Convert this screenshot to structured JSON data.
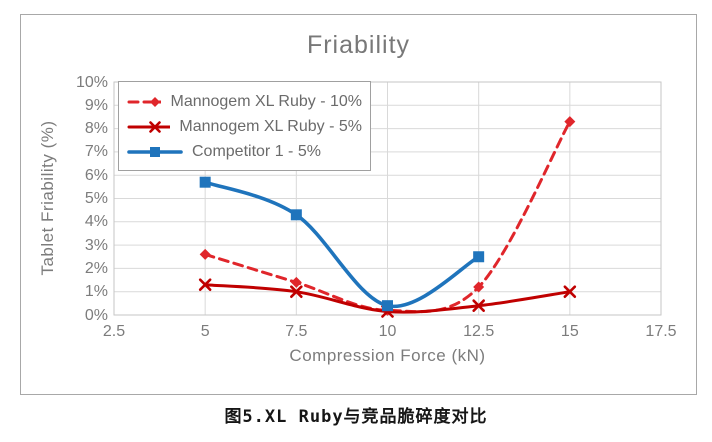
{
  "page": {
    "caption": "图5.XL Ruby与竞品脆碎度对比"
  },
  "chart_data": {
    "type": "line",
    "title": "Friability",
    "xlabel": "Compression Force (kN)",
    "ylabel": "Tablet Friability (%)",
    "xlim": [
      2.5,
      17.5
    ],
    "ylim": [
      0,
      10
    ],
    "grid": true,
    "legend_position": "top-left",
    "x_ticks": [
      2.5,
      5,
      7.5,
      10,
      12.5,
      15,
      17.5
    ],
    "x_tick_labels": [
      "2.5",
      "5",
      "7.5",
      "10",
      "12.5",
      "15",
      "17.5"
    ],
    "y_ticks": [
      0,
      1,
      2,
      3,
      4,
      5,
      6,
      7,
      8,
      9,
      10
    ],
    "y_tick_labels": [
      "0%",
      "1%",
      "2%",
      "3%",
      "4%",
      "5%",
      "6%",
      "7%",
      "8%",
      "9%",
      "10%"
    ],
    "series": [
      {
        "name": "Mannogem XL Ruby - 10%",
        "color": "#e0262b",
        "line": "dashed",
        "marker": "diamond",
        "x": [
          5,
          7.5,
          10,
          12.5,
          15
        ],
        "y": [
          2.6,
          1.4,
          0.2,
          1.2,
          8.3
        ]
      },
      {
        "name": "Mannogem XL Ruby - 5%",
        "color": "#c00000",
        "line": "solid",
        "marker": "x",
        "x": [
          5,
          7.5,
          10,
          12.5,
          15
        ],
        "y": [
          1.3,
          1.0,
          0.15,
          0.4,
          1.0
        ]
      },
      {
        "name": "Competitor 1 - 5%",
        "color": "#1f74bc",
        "line": "solid",
        "marker": "square",
        "x": [
          5,
          7.5,
          10,
          12.5
        ],
        "y": [
          5.7,
          4.3,
          0.4,
          2.5
        ]
      }
    ],
    "styles": {
      "gridline_color": "#d9d9d9",
      "plot_border_color": "#c6c6c6",
      "frame_border_color": "#a8a8a8",
      "title_color": "#787878",
      "tick_color": "#7c7c7c",
      "legend_text_color": "#6b6b6b"
    }
  }
}
